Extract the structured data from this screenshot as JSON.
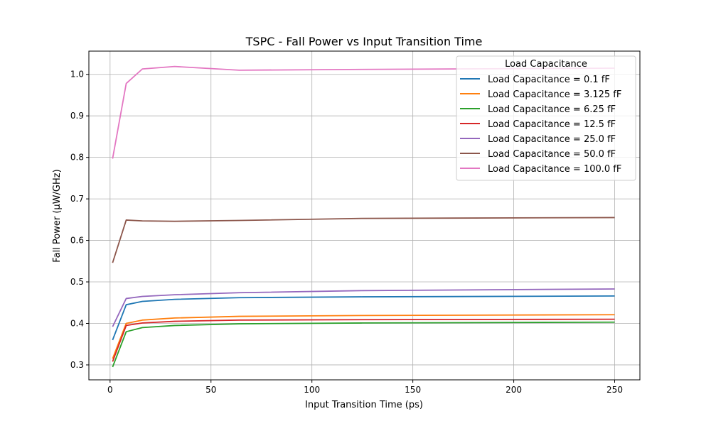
{
  "chart_data": {
    "type": "line",
    "title": "TSPC - Fall Power vs Input Transition Time",
    "xlabel": "Input Transition Time (ps)",
    "ylabel": "Fall Power (µW/GHz)",
    "xlim": [
      -10.5,
      262.5
    ],
    "ylim": [
      0.264,
      1.056
    ],
    "xticks": [
      0,
      50,
      100,
      150,
      200,
      250
    ],
    "yticks": [
      0.3,
      0.4,
      0.5,
      0.6,
      0.7,
      0.8,
      0.9,
      1.0
    ],
    "xtick_labels": [
      "0",
      "50",
      "100",
      "150",
      "200",
      "250"
    ],
    "ytick_labels": [
      "0.3",
      "0.4",
      "0.5",
      "0.6",
      "0.7",
      "0.8",
      "0.9",
      "1.0"
    ],
    "grid": true,
    "legend": {
      "title": "Load Capacitance",
      "placement": "top-right"
    },
    "x": [
      1.25,
      8,
      16,
      32,
      64,
      125,
      250
    ],
    "series": [
      {
        "name": "Load Capacitance = 0.1 fF",
        "color": "#1f77b4",
        "values": [
          0.36,
          0.445,
          0.453,
          0.458,
          0.462,
          0.464,
          0.466
        ]
      },
      {
        "name": "Load Capacitance = 3.125 fF",
        "color": "#ff7f0e",
        "values": [
          0.315,
          0.4,
          0.408,
          0.413,
          0.417,
          0.419,
          0.421
        ]
      },
      {
        "name": "Load Capacitance = 6.25 fF",
        "color": "#2ca02c",
        "values": [
          0.295,
          0.38,
          0.39,
          0.395,
          0.399,
          0.401,
          0.403
        ]
      },
      {
        "name": "Load Capacitance = 12.5 fF",
        "color": "#d62728",
        "values": [
          0.308,
          0.395,
          0.401,
          0.405,
          0.408,
          0.409,
          0.41
        ]
      },
      {
        "name": "Load Capacitance = 25.0 fF",
        "color": "#9467bd",
        "values": [
          0.392,
          0.46,
          0.465,
          0.469,
          0.474,
          0.479,
          0.483
        ]
      },
      {
        "name": "Load Capacitance = 50.0 fF",
        "color": "#8c564b",
        "values": [
          0.546,
          0.649,
          0.647,
          0.646,
          0.648,
          0.653,
          0.655
        ]
      },
      {
        "name": "Load Capacitance = 100.0 fF",
        "color": "#e377c2",
        "values": [
          0.797,
          0.978,
          1.013,
          1.019,
          1.01,
          1.012,
          1.015
        ]
      }
    ]
  }
}
